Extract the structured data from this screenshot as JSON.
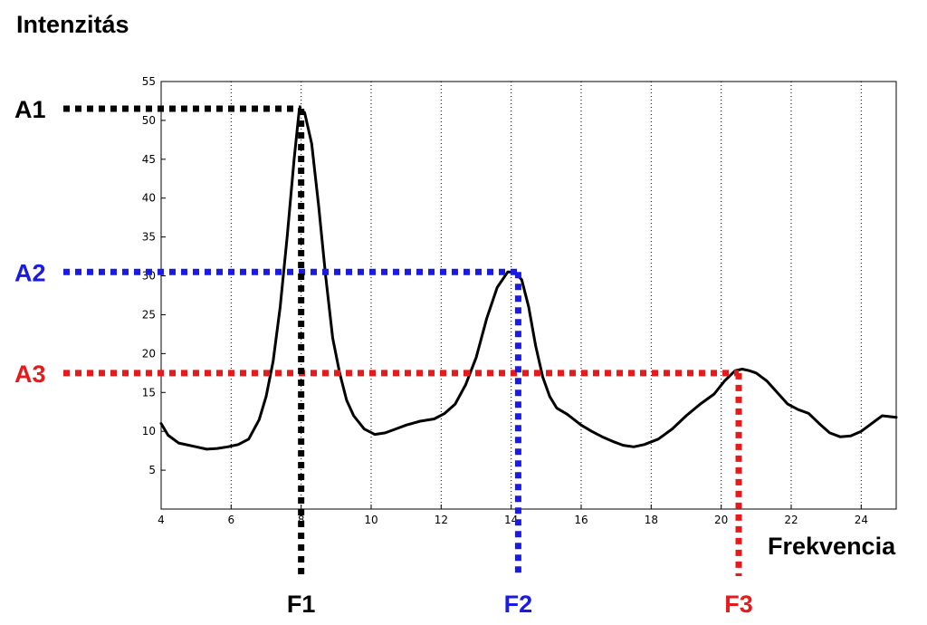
{
  "chart_data": {
    "type": "line",
    "ylabel": "Intenzitás",
    "xlabel": "Frekvencia",
    "xlim": [
      4,
      25
    ],
    "ylim": [
      0,
      55
    ],
    "xticks": [
      4,
      6,
      8,
      10,
      12,
      14,
      16,
      18,
      20,
      22,
      24
    ],
    "yticks": [
      5,
      10,
      15,
      20,
      25,
      30,
      35,
      40,
      45,
      50,
      55
    ],
    "grid": "vertical dotted",
    "series": [
      {
        "color": "#000000",
        "x": [
          4.0,
          4.2,
          4.5,
          5.0,
          5.3,
          5.6,
          5.9,
          6.2,
          6.5,
          6.8,
          7.0,
          7.2,
          7.4,
          7.6,
          7.8,
          7.95,
          8.1,
          8.3,
          8.5,
          8.7,
          8.9,
          9.1,
          9.3,
          9.5,
          9.8,
          10.1,
          10.4,
          10.7,
          11.0,
          11.4,
          11.8,
          12.1,
          12.4,
          12.7,
          13.0,
          13.3,
          13.6,
          13.9,
          14.1,
          14.3,
          14.5,
          14.7,
          14.9,
          15.1,
          15.3,
          15.6,
          16.0,
          16.3,
          16.6,
          16.9,
          17.2,
          17.5,
          17.8,
          18.2,
          18.6,
          19.0,
          19.4,
          19.8,
          20.1,
          20.4,
          20.6,
          20.8,
          21.0,
          21.3,
          21.6,
          21.9,
          22.2,
          22.5,
          22.8,
          23.1,
          23.4,
          23.7,
          24.0,
          24.3,
          24.6,
          25.0
        ],
        "y": [
          11,
          9.5,
          8.5,
          8.0,
          7.7,
          7.8,
          8.0,
          8.3,
          9.0,
          11.5,
          14.5,
          19,
          26,
          35,
          45,
          51.5,
          51,
          47,
          39,
          30,
          22,
          17.5,
          14,
          12,
          10.3,
          9.6,
          9.8,
          10.3,
          10.8,
          11.3,
          11.6,
          12.3,
          13.5,
          16,
          19.5,
          24.5,
          28.5,
          30.5,
          30.5,
          29.5,
          26,
          21,
          17,
          14.5,
          13,
          12.2,
          10.8,
          10.0,
          9.3,
          8.7,
          8.2,
          8.0,
          8.3,
          9.0,
          10.3,
          12.0,
          13.5,
          14.8,
          16.5,
          17.8,
          18.0,
          17.8,
          17.5,
          16.5,
          15.0,
          13.5,
          12.8,
          12.3,
          11.0,
          9.8,
          9.3,
          9.4,
          10.0,
          11.0,
          12.0,
          11.8
        ]
      }
    ],
    "annotations": [
      {
        "label": "A1",
        "color": "#000000",
        "x": 8.0,
        "y": 51.5
      },
      {
        "label": "A2",
        "color": "#1a1ae6",
        "x": 14.2,
        "y": 30.5
      },
      {
        "label": "A3",
        "color": "#e61a1a",
        "x": 20.5,
        "y": 17.5
      },
      {
        "label": "F1",
        "color": "#000000",
        "x": 8.0
      },
      {
        "label": "F2",
        "color": "#1a1ae6",
        "x": 14.2
      },
      {
        "label": "F3",
        "color": "#e61a1a",
        "x": 20.5
      }
    ]
  }
}
